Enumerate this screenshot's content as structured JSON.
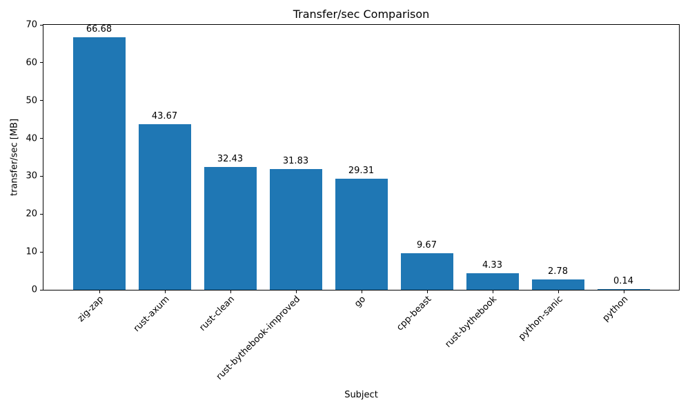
{
  "chart_data": {
    "type": "bar",
    "title": "Transfer/sec Comparison",
    "xlabel": "Subject",
    "ylabel": "transfer/sec [MB]",
    "categories": [
      "zig-zap",
      "rust-axum",
      "rust-clean",
      "rust-bythebook-improved",
      "go",
      "cpp-beast",
      "rust-bythebook",
      "python-sanic",
      "python"
    ],
    "values": [
      66.68,
      43.67,
      32.43,
      31.83,
      29.31,
      9.67,
      4.33,
      2.78,
      0.14
    ],
    "value_labels": [
      "66.68",
      "43.67",
      "32.43",
      "31.83",
      "29.31",
      "9.67",
      "4.33",
      "2.78",
      "0.14"
    ],
    "ylim": [
      0,
      70
    ],
    "yticks": [
      0,
      10,
      20,
      30,
      40,
      50,
      60,
      70
    ],
    "bar_color": "#1f77b4",
    "grid": false,
    "legend": null,
    "x_tick_rotation_deg": 45
  }
}
